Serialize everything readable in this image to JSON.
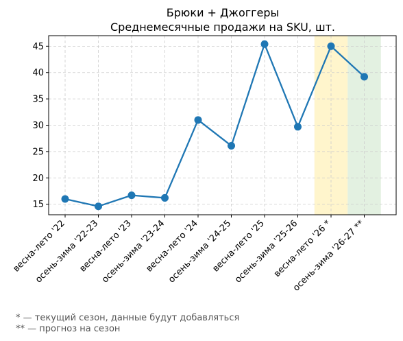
{
  "chart_data": {
    "type": "line",
    "title": "Брюки + Джоггеры",
    "subtitle": "Среднемесячные продажи на SKU, шт.",
    "xlabel": "",
    "ylabel": "",
    "categories": [
      "весна-лето '22",
      "осень-зима '22-23",
      "весна-лето '23",
      "осень-зима '23-24",
      "весна-лето '24",
      "осень-зима '24-25",
      "весна-лето '25",
      "осень-зима '25-26",
      "весна-лето '26 *",
      "осень-зима '26-27 **"
    ],
    "series": [
      {
        "values": [
          16.0,
          14.6,
          16.7,
          16.2,
          31.0,
          26.1,
          45.4,
          29.7,
          45.0,
          39.2
        ]
      }
    ],
    "ylim": [
      13,
      47
    ],
    "yticks": [
      15,
      20,
      25,
      30,
      35,
      40,
      45
    ],
    "grid": true,
    "legend": "none",
    "highlight_bands": [
      {
        "category_index": 8,
        "color": "#fff5cc",
        "meaning": "current season"
      },
      {
        "category_index": 9,
        "color": "#e3f1e1",
        "meaning": "forecast"
      }
    ],
    "colors": {
      "line": "#1f77b4",
      "grid": "#cccccc",
      "axis": "#000000"
    }
  },
  "footnotes": [
    "* — текущий сезон, данные будут добавляться",
    "** — прогноз на сезон"
  ]
}
